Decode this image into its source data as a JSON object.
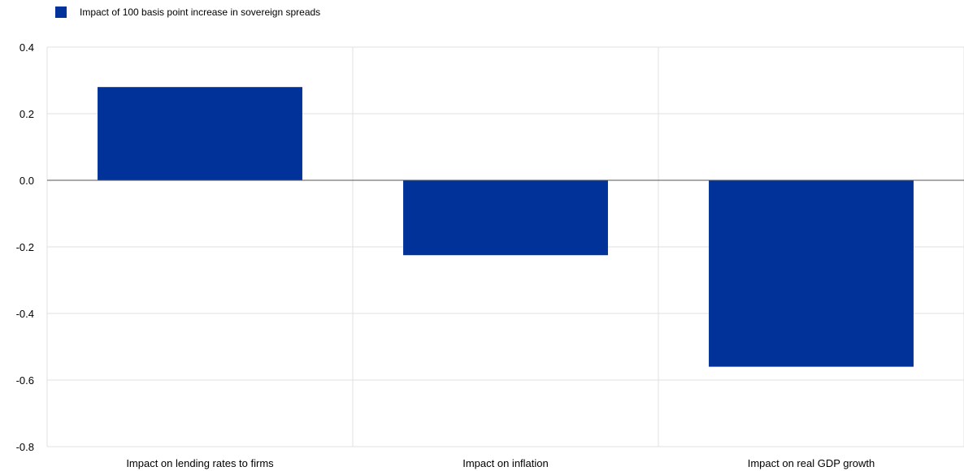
{
  "chart_data": {
    "type": "bar",
    "categories": [
      "Impact on lending rates to firms",
      "Impact on inflation",
      "Impact on real GDP growth"
    ],
    "series": [
      {
        "name": "Impact of 100  basis point increase  in sovereign  spreads",
        "values": [
          0.28,
          -0.225,
          -0.56
        ],
        "color": "#003299"
      }
    ],
    "ylim": [
      -0.8,
      0.4
    ],
    "yticks": [
      "0.4",
      "0.2",
      "0.0",
      "-0.2",
      "-0.4",
      "-0.6",
      "-0.8"
    ],
    "grid": true,
    "legend_position": "top-left"
  }
}
